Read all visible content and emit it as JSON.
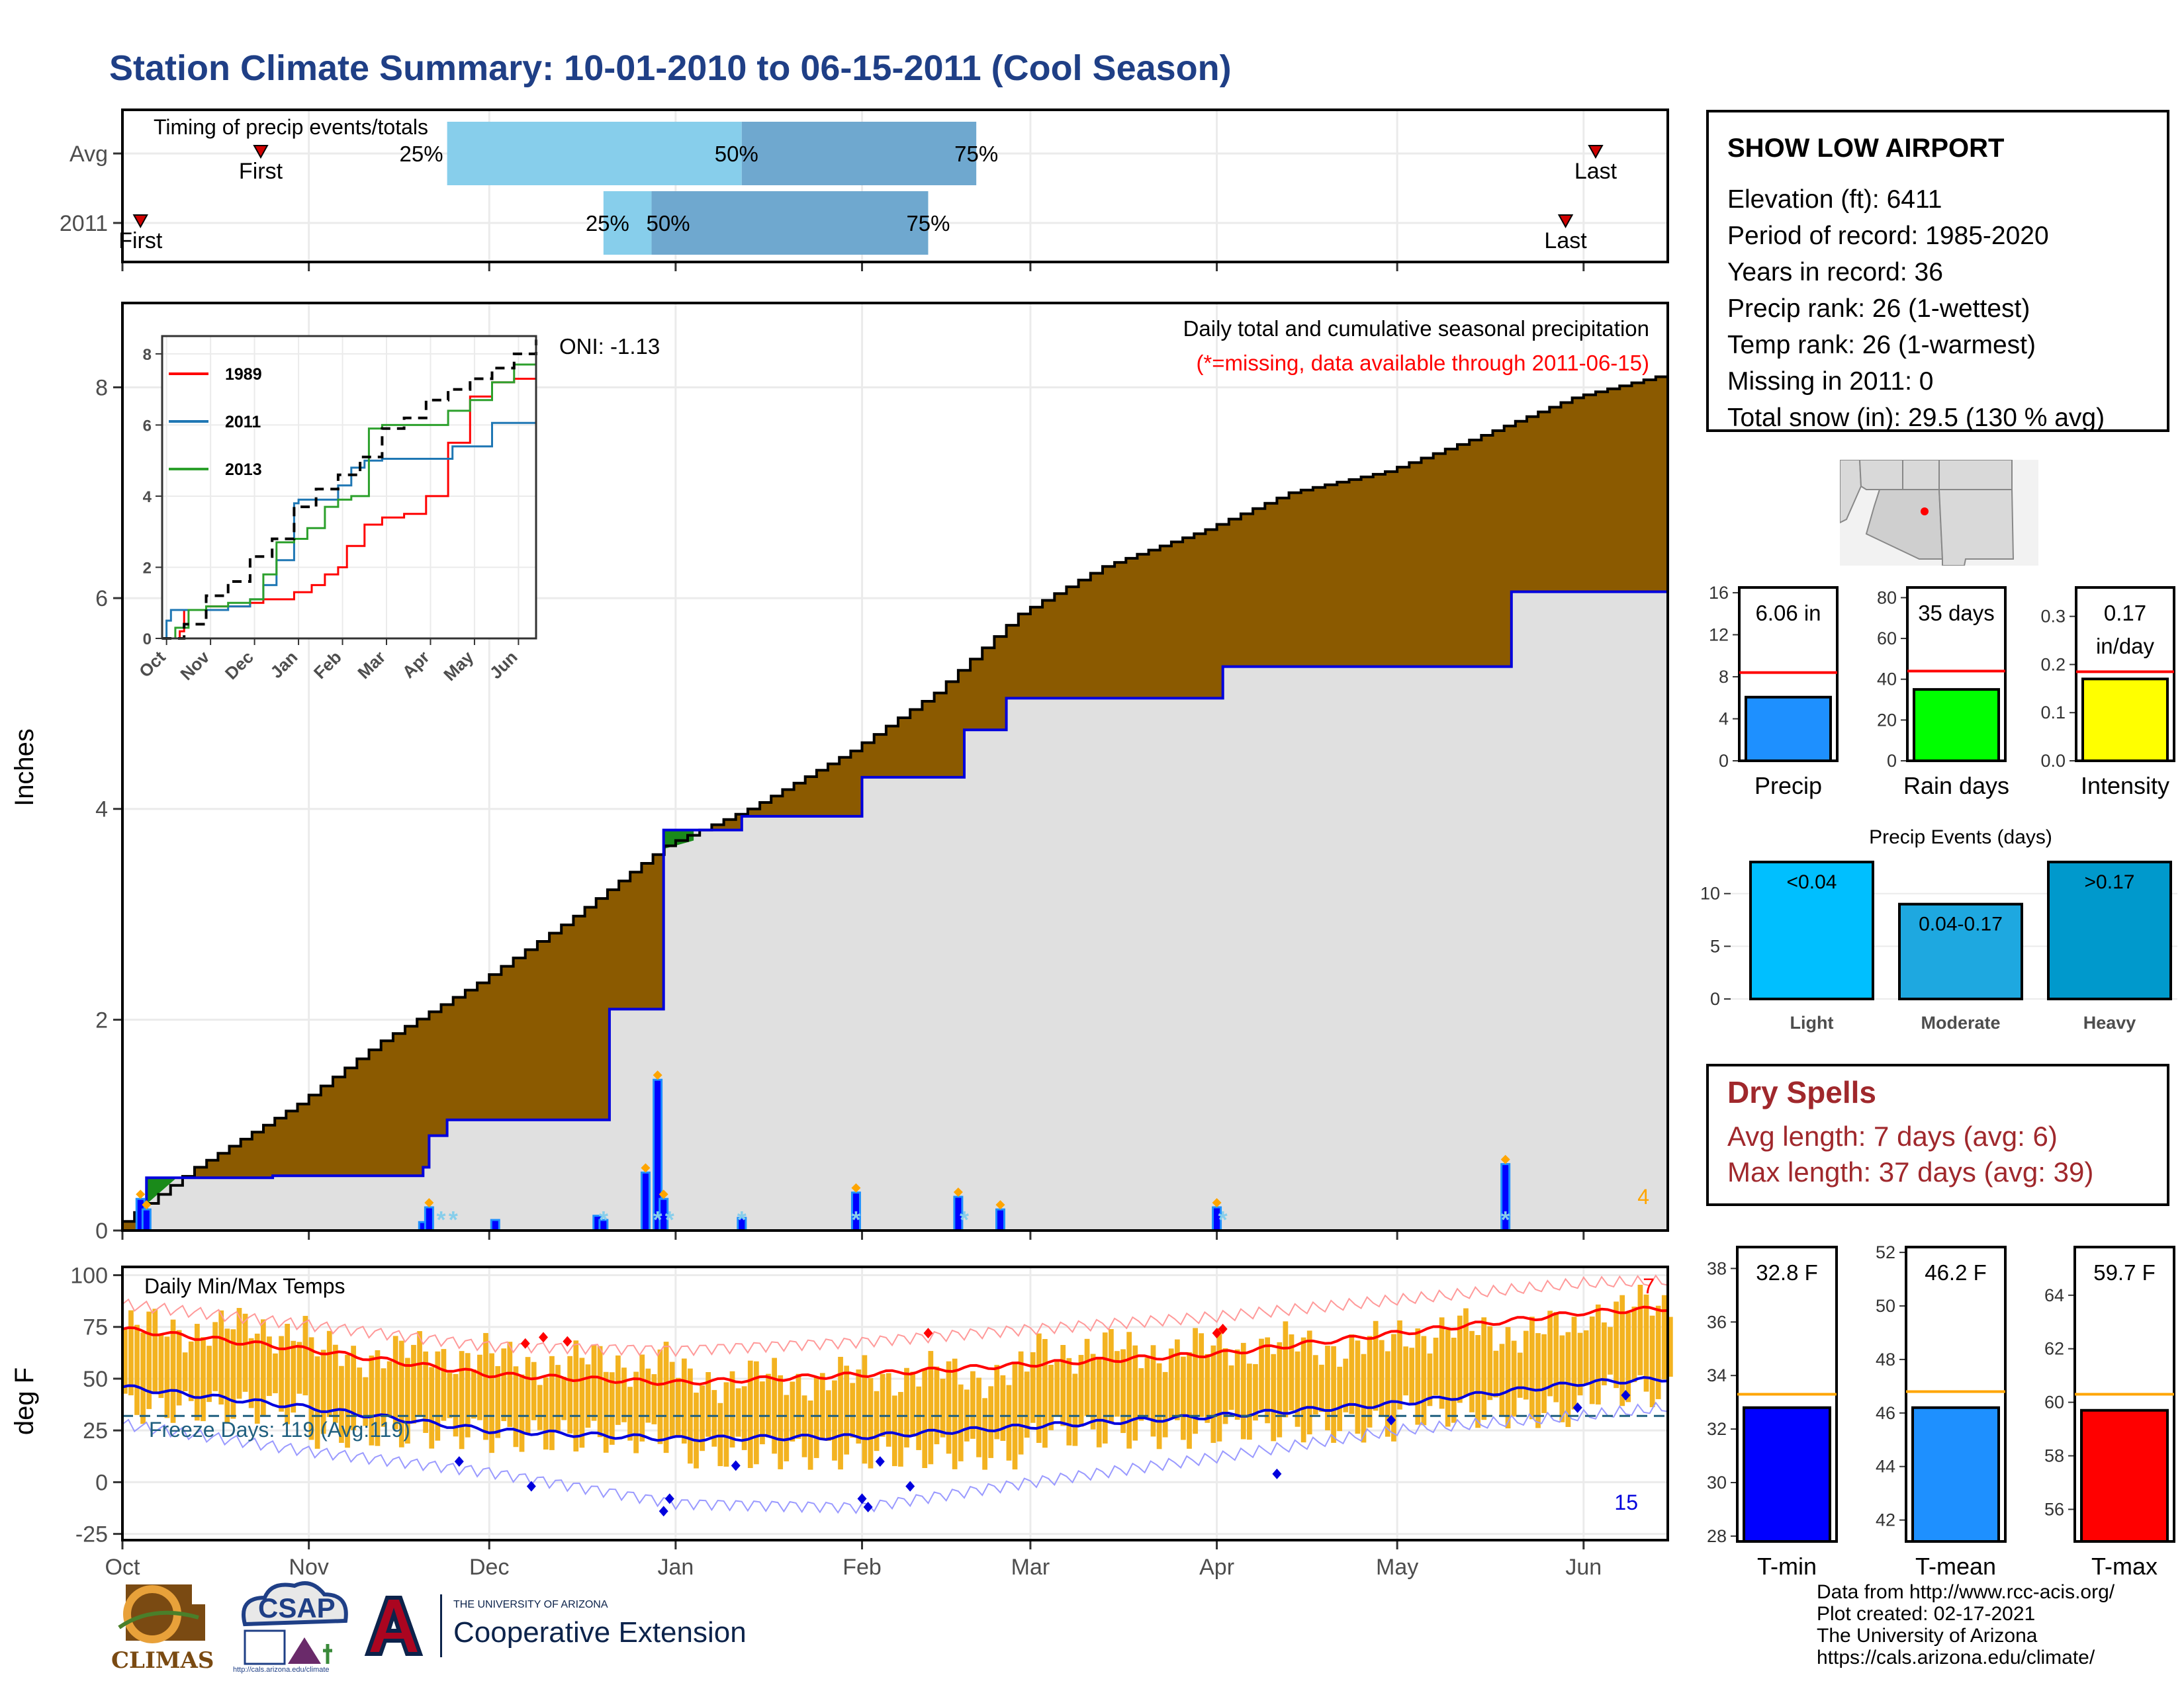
{
  "title": "Station Climate Summary: 10-01-2010 to 06-15-2011 (Cool Season)",
  "station": {
    "name": "SHOW LOW AIRPORT",
    "lines": [
      "Elevation (ft): 6411",
      "Period of record: 1985-2020",
      "Years in record: 36",
      "Precip rank: 26 (1-wettest)",
      "Temp rank: 26 (1-warmest)",
      "Missing in 2011: 0",
      "Total snow (in): 29.5 (130 % avg)"
    ]
  },
  "dry_spells": {
    "title": "Dry Spells",
    "avg": "Avg length: 7 days (avg: 6)",
    "max": "Max length: 37 days (avg: 39)"
  },
  "footer": {
    "lines": [
      "Data from http://www.rcc-acis.org/",
      "Plot created: 02-17-2021",
      "The University of Arizona",
      "https://cals.arizona.edu/climate/"
    ]
  },
  "logos": {
    "climas": "CLIMAS",
    "csap": "CSAP",
    "csap_url": "http://cals.arizona.edu/climate",
    "ua_small": "THE UNIVERSITY OF ARIZONA",
    "ua_big": "Cooperative Extension"
  },
  "colors": {
    "title": "#1f3f86",
    "cumulative_total": "#8b5a00",
    "cumulative_current": "#0000dd",
    "avg_band": "#e0e0e0",
    "tmax_obs": "#f3b320",
    "tmin_avg": "#0000dd",
    "tmax_avg": "#ff0000",
    "freeze_line": "#1f5f7f"
  },
  "chart_data": [
    {
      "id": "timing",
      "type": "bar",
      "title": "Timing of precip events/totals",
      "categories": [
        "Avg",
        "2011"
      ],
      "x_range": [
        "2010-10-01",
        "2011-06-15"
      ],
      "rows": [
        {
          "label": "Avg",
          "first": "2010-10-24",
          "p25": "2010-11-24",
          "p50": "2011-01-12",
          "p75": "2011-02-20",
          "last": "2011-06-03"
        },
        {
          "label": "2011",
          "first": "2010-10-04",
          "p25": "2010-12-20",
          "p50": "2010-12-28",
          "p75": "2011-02-12",
          "last": "2011-05-29"
        }
      ],
      "labels": {
        "first": "First",
        "last": "Last",
        "p25": "25%",
        "p50": "50%",
        "p75": "75%"
      }
    },
    {
      "id": "precip",
      "type": "area",
      "title": "Daily total and cumulative seasonal precipitation",
      "subtitle": "(*=missing, data available through 2011-06-15)",
      "ylabel": "Inches",
      "ylim": [
        0,
        8.8
      ],
      "yticks": [
        0,
        2,
        4,
        6,
        8
      ],
      "oni": "ONI: -1.13",
      "corner_count": "4",
      "avg_cumulative": {
        "dates": [
          "2010-10-01",
          "2010-10-15",
          "2010-11-01",
          "2010-11-15",
          "2010-12-01",
          "2010-12-15",
          "2011-01-01",
          "2011-01-15",
          "2011-02-01",
          "2011-02-15",
          "2011-03-01",
          "2011-03-15",
          "2011-04-01",
          "2011-04-15",
          "2011-05-01",
          "2011-05-15",
          "2011-06-01",
          "2011-06-15"
        ],
        "values": [
          0.0,
          0.6,
          1.2,
          1.8,
          2.35,
          2.9,
          3.65,
          4.0,
          4.55,
          5.1,
          5.85,
          6.3,
          6.65,
          7.0,
          7.2,
          7.5,
          7.9,
          8.1
        ]
      },
      "cum_2011": {
        "dates": [
          "2010-10-01",
          "2010-10-04",
          "2010-10-05",
          "2010-10-26",
          "2010-11-20",
          "2010-11-21",
          "2010-11-24",
          "2010-12-17",
          "2010-12-21",
          "2010-12-29",
          "2010-12-30",
          "2011-01-11",
          "2011-01-12",
          "2011-01-31",
          "2011-02-01",
          "2011-02-17",
          "2011-02-18",
          "2011-02-24",
          "2011-02-25",
          "2011-04-01",
          "2011-04-02",
          "2011-05-19",
          "2011-05-20",
          "2011-06-15"
        ],
        "values": [
          0.0,
          0.0,
          0.5,
          0.52,
          0.6,
          0.9,
          1.05,
          1.05,
          2.1,
          2.1,
          3.8,
          3.8,
          3.93,
          3.93,
          4.3,
          4.3,
          4.75,
          4.75,
          5.05,
          5.05,
          5.35,
          5.35,
          6.06,
          6.06
        ]
      },
      "daily_bars": [
        {
          "date": "2010-10-04",
          "value": 0.3
        },
        {
          "date": "2010-10-05",
          "value": 0.2
        },
        {
          "date": "2010-11-20",
          "value": 0.08
        },
        {
          "date": "2010-11-21",
          "value": 0.22
        },
        {
          "date": "2010-12-02",
          "value": 0.1
        },
        {
          "date": "2010-12-19",
          "value": 0.14
        },
        {
          "date": "2010-12-20",
          "value": 0.1
        },
        {
          "date": "2010-12-27",
          "value": 0.55
        },
        {
          "date": "2010-12-29",
          "value": 1.43
        },
        {
          "date": "2010-12-30",
          "value": 0.3
        },
        {
          "date": "2011-01-12",
          "value": 0.12
        },
        {
          "date": "2011-01-31",
          "value": 0.36
        },
        {
          "date": "2011-02-17",
          "value": 0.32
        },
        {
          "date": "2011-02-24",
          "value": 0.2
        },
        {
          "date": "2011-04-01",
          "value": 0.22
        },
        {
          "date": "2011-05-19",
          "value": 0.63
        }
      ],
      "inset": {
        "xticks": [
          "Oct",
          "Nov",
          "Dec",
          "Jan",
          "Feb",
          "Mar",
          "Apr",
          "May",
          "Jun"
        ],
        "yticks": [
          0,
          2,
          4,
          6,
          8
        ],
        "ylim": [
          0,
          8.5
        ],
        "series": [
          {
            "name": "1989",
            "color": "#ff0000",
            "x": [
              0,
              0.4,
              0.5,
              1,
              1.5,
              2,
              2.3,
              3,
              3.4,
              3.7,
              4,
              4.2,
              4.6,
              5,
              5.5,
              6,
              6.5,
              7,
              7.5,
              8,
              8.5
            ],
            "y": [
              0,
              0.2,
              0.8,
              0.9,
              0.9,
              1.0,
              1.1,
              1.3,
              1.5,
              1.8,
              2.0,
              2.6,
              3.2,
              3.4,
              3.5,
              4.0,
              5.5,
              6.8,
              7.2,
              7.3,
              7.3
            ]
          },
          {
            "name": "2011",
            "color": "#1f77b4",
            "x": [
              0,
              0.1,
              0.2,
              1,
              1.5,
              2,
              2.3,
              2.6,
              3,
              3.1,
              3.5,
              4,
              4.3,
              4.6,
              5,
              6,
              6.6,
              7.5,
              8,
              8.5
            ],
            "y": [
              0,
              0.5,
              0.8,
              0.8,
              0.9,
              1.1,
              1.5,
              2.2,
              3.8,
              3.9,
              3.9,
              4.3,
              4.8,
              5.0,
              5.05,
              5.05,
              5.4,
              6.06,
              6.06,
              6.06
            ]
          },
          {
            "name": "2013",
            "color": "#2ca02c",
            "x": [
              0,
              0.3,
              0.6,
              1,
              1.5,
              2,
              2.3,
              2.6,
              3,
              3.3,
              3.7,
              4,
              4.3,
              4.7,
              5,
              6,
              6.5,
              7,
              7.5,
              8,
              8.5
            ],
            "y": [
              0,
              0.3,
              0.8,
              0.9,
              1.0,
              1.1,
              1.8,
              2.7,
              2.8,
              3.1,
              3.7,
              3.9,
              4.0,
              5.9,
              6.0,
              6.0,
              6.4,
              6.7,
              7.2,
              7.7,
              7.8
            ]
          },
          {
            "name": "avg",
            "color": "#000000",
            "dash": true,
            "x": [
              0,
              0.5,
              1,
              1.5,
              2,
              2.5,
              3,
              3.5,
              4,
              4.5,
              5,
              5.5,
              6,
              6.5,
              7,
              7.5,
              8,
              8.5
            ],
            "y": [
              0,
              0.4,
              1.2,
              1.6,
              2.3,
              2.8,
              3.7,
              4.2,
              4.6,
              5.1,
              5.9,
              6.2,
              6.7,
              7.0,
              7.3,
              7.6,
              8.0,
              8.4
            ]
          }
        ]
      }
    },
    {
      "id": "temps",
      "type": "bar",
      "title": "Daily Min/Max Temps",
      "ylabel": "deg F",
      "ylim": [
        -28,
        104
      ],
      "yticks": [
        -25,
        0,
        25,
        50,
        75,
        100
      ],
      "xticks": [
        "Oct",
        "Nov",
        "Dec",
        "Jan",
        "Feb",
        "Mar",
        "Apr",
        "May",
        "Jun"
      ],
      "freeze_label": "Freeze Days: 119 (Avg:119)",
      "freeze_temp": 32,
      "max_records_count": "7",
      "min_records_count": "15",
      "avg_tmax": {
        "dates": [
          "2010-10-01",
          "2010-11-01",
          "2010-12-01",
          "2011-01-01",
          "2011-02-01",
          "2011-03-01",
          "2011-04-01",
          "2011-05-01",
          "2011-06-01",
          "2011-06-15"
        ],
        "values": [
          74,
          64,
          52,
          48,
          52,
          57,
          62,
          72,
          82,
          84
        ]
      },
      "avg_tmin": {
        "dates": [
          "2010-10-01",
          "2010-11-01",
          "2010-12-01",
          "2011-01-01",
          "2011-02-01",
          "2011-03-01",
          "2011-04-01",
          "2011-05-01",
          "2011-06-01",
          "2011-06-15"
        ],
        "values": [
          46,
          36,
          25,
          21,
          22,
          27,
          32,
          38,
          48,
          50
        ]
      },
      "record_high": {
        "dates": [
          "2010-10-01",
          "2010-11-01",
          "2010-12-01",
          "2011-01-01",
          "2011-02-01",
          "2011-03-01",
          "2011-04-01",
          "2011-05-01",
          "2011-06-01",
          "2011-06-15"
        ],
        "values": [
          86,
          76,
          66,
          64,
          68,
          74,
          80,
          88,
          96,
          97
        ]
      },
      "record_low": {
        "dates": [
          "2010-10-01",
          "2010-11-01",
          "2010-12-01",
          "2011-01-01",
          "2011-02-01",
          "2011-03-01",
          "2011-04-01",
          "2011-05-01",
          "2011-06-01",
          "2011-06-15"
        ],
        "values": [
          28,
          15,
          5,
          -10,
          -12,
          0,
          12,
          25,
          32,
          36
        ]
      },
      "observed_monthly": {
        "months": [
          "Oct",
          "Nov",
          "Dec",
          "Jan",
          "Feb",
          "Mar",
          "Apr",
          "May",
          "Jun"
        ],
        "tmax": [
          74,
          62,
          58,
          50,
          52,
          64,
          66,
          73,
          84
        ],
        "tmin": [
          36,
          24,
          22,
          14,
          14,
          24,
          27,
          34,
          44
        ]
      }
    },
    {
      "id": "precip-summary",
      "type": "bar",
      "panels": [
        {
          "name": "Precip",
          "label": "6.06 in",
          "value": 6.06,
          "avg": 8.4,
          "ylim": [
            0,
            16.5
          ],
          "yticks": [
            0,
            4,
            8,
            12,
            16
          ],
          "color": "#1e90ff"
        },
        {
          "name": "Rain days",
          "label": "35 days",
          "value": 35,
          "avg": 44,
          "ylim": [
            0,
            85
          ],
          "yticks": [
            0,
            20,
            40,
            60,
            80
          ],
          "color": "#00ff00"
        },
        {
          "name": "Intensity",
          "label": "0.17 in/day",
          "label_lines": [
            "0.17",
            "in/day"
          ],
          "value": 0.17,
          "avg": 0.185,
          "ylim": [
            0,
            0.36
          ],
          "yticks": [
            0.0,
            0.1,
            0.2,
            0.3
          ],
          "ytick_labels": [
            "0.0",
            "0.1",
            "0.2",
            "0.3"
          ],
          "color": "#ffff00"
        }
      ]
    },
    {
      "id": "precip-events",
      "type": "bar",
      "title": "Precip Events (days)",
      "categories": [
        "Light",
        "Moderate",
        "Heavy"
      ],
      "bar_labels": [
        "<0.04",
        "0.04-0.17",
        ">0.17"
      ],
      "values": [
        13,
        9,
        13
      ],
      "ylim": [
        0,
        13.5
      ],
      "yticks": [
        0,
        5,
        10
      ],
      "colors": [
        "#00bfff",
        "#1ea8e0",
        "#0099cc"
      ]
    },
    {
      "id": "temp-summary",
      "type": "bar",
      "panels": [
        {
          "name": "T-min",
          "label": "32.8 F",
          "value": 32.8,
          "avg": 33.3,
          "ylim": [
            27.8,
            38.8
          ],
          "yticks": [
            28,
            30,
            32,
            34,
            36,
            38
          ],
          "color": "#0000ff"
        },
        {
          "name": "T-mean",
          "label": "46.2 F",
          "value": 46.2,
          "avg": 46.8,
          "ylim": [
            41.2,
            52.2
          ],
          "yticks": [
            42,
            44,
            46,
            48,
            50,
            52
          ],
          "color": "#1e90ff"
        },
        {
          "name": "T-max",
          "label": "59.7 F",
          "value": 59.7,
          "avg": 60.3,
          "ylim": [
            54.8,
            65.8
          ],
          "yticks": [
            56,
            58,
            60,
            62,
            64
          ],
          "color": "#ff0000"
        }
      ]
    }
  ]
}
